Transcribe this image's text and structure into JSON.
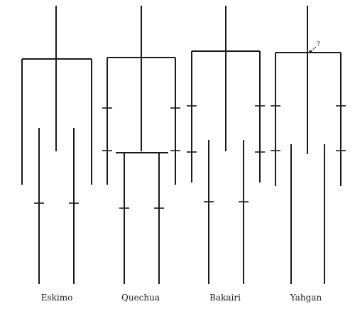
{
  "diagrams": [
    {
      "label": "Eskimo"
    },
    {
      "label": "Quechua"
    },
    {
      "label": "Bakairi"
    },
    {
      "label": "Yahgan"
    }
  ],
  "annotation": "?"
}
